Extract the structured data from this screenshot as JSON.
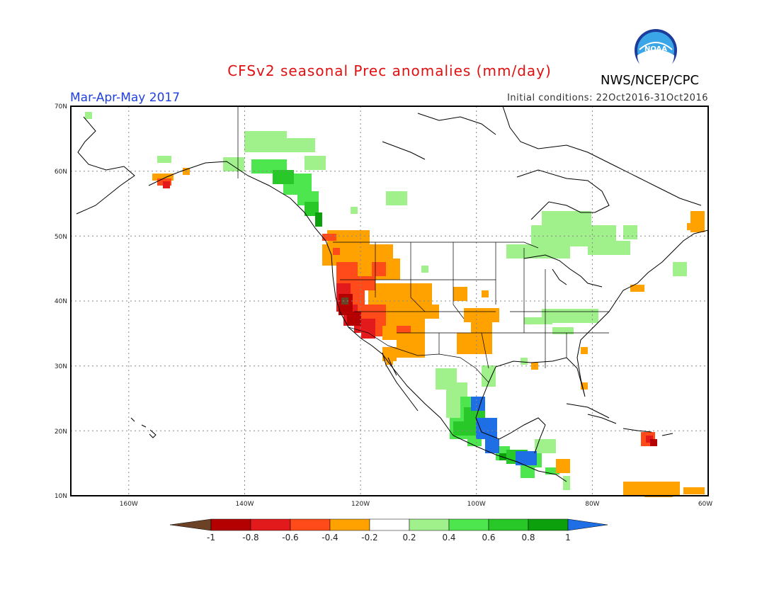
{
  "title": "CFSv2 seasonal Prec anomalies (mm/day)",
  "period": "Mar-Apr-May 2017",
  "initial_conditions": "Initial conditions: 22Oct2016-31Oct2016",
  "org": "NWS/NCEP/CPC",
  "logo_text": "NOAA",
  "lat_labels": [
    "70N",
    "60N",
    "50N",
    "40N",
    "30N",
    "20N",
    "10N"
  ],
  "lon_labels": [
    "160W",
    "140W",
    "120W",
    "100W",
    "80W",
    "60W"
  ],
  "colorbar": {
    "ticks": [
      "-1",
      "-0.8",
      "-0.6",
      "-0.4",
      "-0.2",
      "0.2",
      "0.4",
      "0.6",
      "0.8",
      "1"
    ],
    "colors": [
      "#6b4226",
      "#b40000",
      "#e31a1c",
      "#ff4a1a",
      "#ffa200",
      "#ffffff",
      "#a0f08c",
      "#4ee64e",
      "#28c828",
      "#0ca00c",
      "#1e6ee6"
    ]
  },
  "map_extent": {
    "lon_min": -170,
    "lon_max": -60,
    "lat_min": 10,
    "lat_max": 70
  }
}
